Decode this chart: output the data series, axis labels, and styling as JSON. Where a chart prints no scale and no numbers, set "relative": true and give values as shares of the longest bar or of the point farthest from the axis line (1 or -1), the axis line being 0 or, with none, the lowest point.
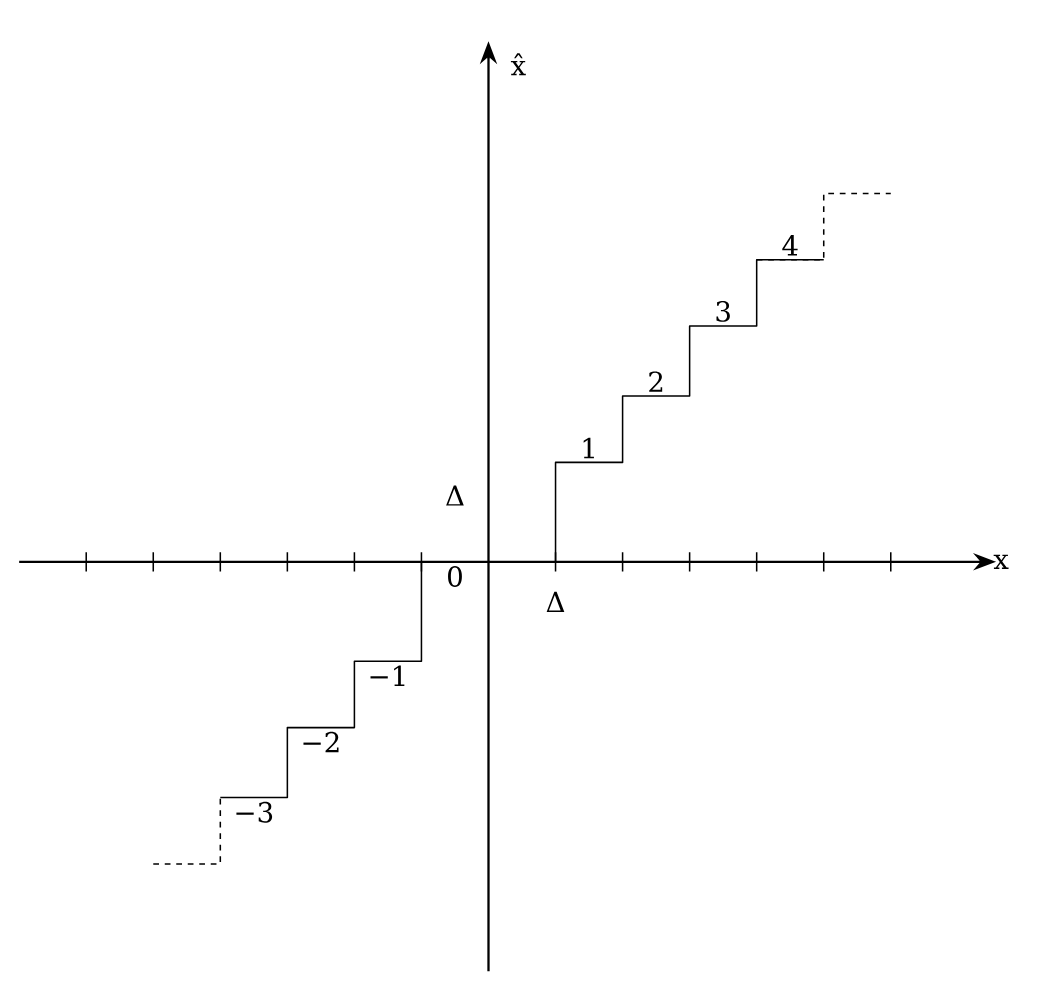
{
  "chart_data": {
    "type": "step",
    "xlabel": "x",
    "ylabel": "x̂",
    "marker": "none",
    "relative": true,
    "categories": [
      null,
      null,
      null,
      null,
      null,
      null,
      null,
      null,
      null,
      null,
      null,
      null,
      null
    ],
    "series": [
      {
        "color": "#000000",
        "line_style": "solid",
        "values": [
          null,
          null,
          -0.64,
          -0.45,
          -0.27,
          0,
          0,
          0.27,
          0.45,
          0.64,
          0.82,
          0.82,
          null
        ]
      },
      {
        "color": "#000000",
        "line_style": "dashed",
        "values": [
          null,
          -0.82,
          -0.64,
          null,
          null,
          null,
          null,
          null,
          null,
          null,
          null,
          null,
          null
        ]
      },
      {
        "color": "#000000",
        "line_style": "dashed",
        "values": [
          null,
          null,
          null,
          null,
          null,
          null,
          null,
          null,
          null,
          null,
          0.82,
          1,
          1
        ]
      }
    ],
    "annotations": [
      "Δ",
      "Δ",
      "−3",
      "−2",
      "−1",
      "0",
      "1",
      "2",
      "3",
      "4"
    ]
  }
}
